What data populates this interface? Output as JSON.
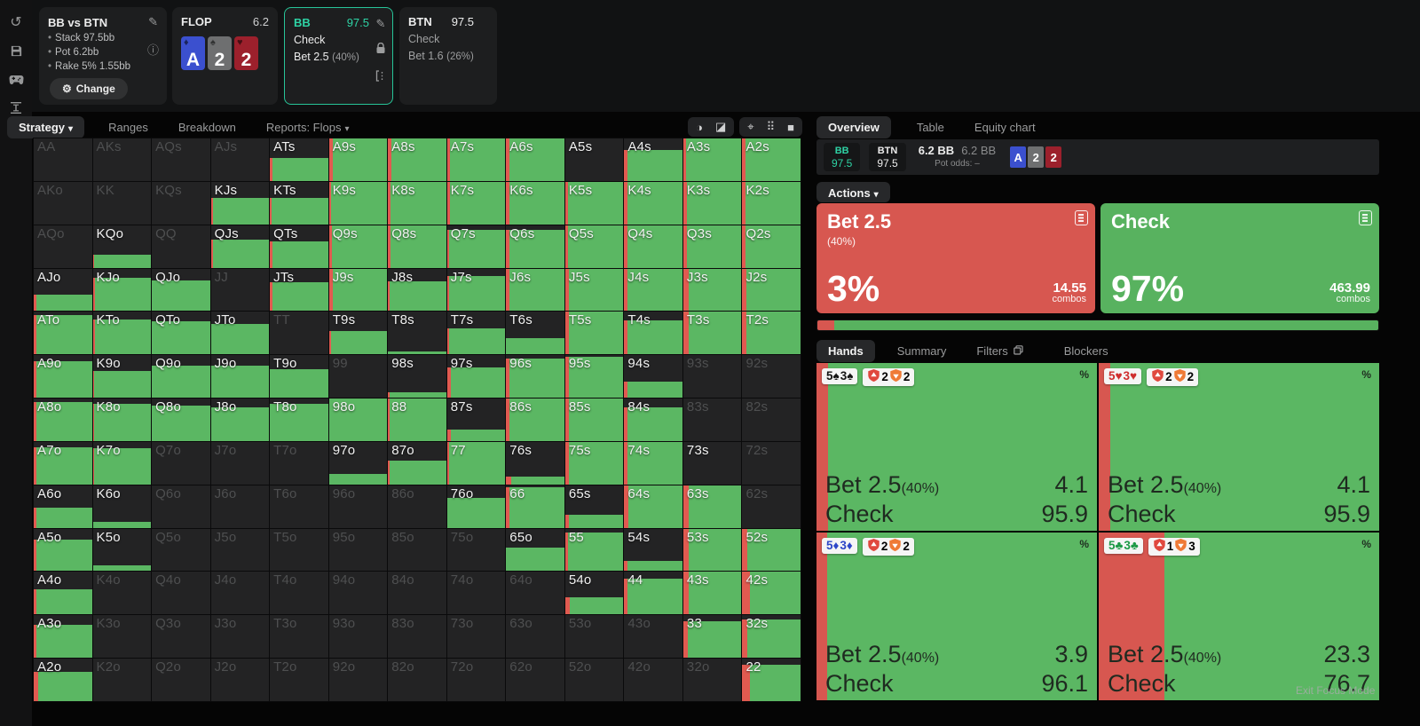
{
  "app": {
    "watermark": "Exit Focus Mode"
  },
  "header": {
    "sidebar_icons": [
      "undo-icon",
      "save-icon",
      "controller-icon",
      "stack-depth-icon"
    ],
    "config": {
      "title": "BB vs BTN",
      "rows": [
        "Stack 97.5bb",
        "Pot 6.2bb",
        "Rake 5% 1.55bb"
      ],
      "change_label": "Change"
    },
    "flop": {
      "label": "FLOP",
      "pot": "6.2",
      "cards": [
        {
          "rank": "A",
          "suit": "d"
        },
        {
          "rank": "2",
          "suit": "s"
        },
        {
          "rank": "2",
          "suit": "h"
        }
      ]
    },
    "nodes": [
      {
        "pos": "BB",
        "stack": "97.5",
        "action1": "Check",
        "freq1": "",
        "action2": "Bet 2.5",
        "freq2": "(40%)",
        "selected": true
      },
      {
        "pos": "BTN",
        "stack": "97.5",
        "action1": "Check",
        "freq1": "",
        "action2": "Bet 1.6",
        "freq2": "(26%)",
        "selected": false
      }
    ]
  },
  "matrix": {
    "tabs": [
      {
        "label": "Strategy"
      },
      {
        "label": "Ranges"
      },
      {
        "label": "Breakdown"
      },
      {
        "label": "Reports: Flops"
      }
    ],
    "cells": [
      [
        "AA",
        0,
        0,
        0
      ],
      [
        "AKs",
        0,
        0,
        0
      ],
      [
        "AQs",
        0,
        0,
        0
      ],
      [
        "AJs",
        0,
        0,
        0
      ],
      [
        "ATs",
        55,
        4,
        1
      ],
      [
        "A9s",
        100,
        6,
        1
      ],
      [
        "A8s",
        100,
        6,
        1
      ],
      [
        "A7s",
        100,
        5,
        1
      ],
      [
        "A6s",
        100,
        5,
        1
      ],
      [
        "A5s",
        0,
        0,
        1
      ],
      [
        "A4s",
        72,
        5,
        1
      ],
      [
        "A3s",
        100,
        5,
        1
      ],
      [
        "A2s",
        100,
        5,
        1
      ],
      [
        "AKo",
        0,
        0,
        0
      ],
      [
        "KK",
        0,
        0,
        0
      ],
      [
        "KQs",
        0,
        0,
        0
      ],
      [
        "KJs",
        62,
        4,
        1
      ],
      [
        "KTs",
        62,
        3,
        1
      ],
      [
        "K9s",
        100,
        4,
        1
      ],
      [
        "K8s",
        100,
        5,
        1
      ],
      [
        "K7s",
        100,
        5,
        1
      ],
      [
        "K6s",
        100,
        5,
        1
      ],
      [
        "K5s",
        100,
        5,
        1
      ],
      [
        "K4s",
        100,
        6,
        1
      ],
      [
        "K3s",
        100,
        6,
        1
      ],
      [
        "K2s",
        100,
        5,
        1
      ],
      [
        "AQo",
        0,
        0,
        0
      ],
      [
        "KQo",
        30,
        2,
        1
      ],
      [
        "QQ",
        0,
        0,
        0
      ],
      [
        "QJs",
        66,
        4,
        1
      ],
      [
        "QTs",
        62,
        4,
        1
      ],
      [
        "Q9s",
        100,
        5,
        1
      ],
      [
        "Q8s",
        100,
        5,
        1
      ],
      [
        "Q7s",
        88,
        4,
        1
      ],
      [
        "Q6s",
        88,
        5,
        1
      ],
      [
        "Q5s",
        100,
        5,
        1
      ],
      [
        "Q4s",
        100,
        6,
        1
      ],
      [
        "Q3s",
        100,
        6,
        1
      ],
      [
        "Q2s",
        100,
        5,
        1
      ],
      [
        "AJo",
        38,
        5,
        1
      ],
      [
        "KJo",
        78,
        4,
        1
      ],
      [
        "QJo",
        72,
        0,
        1
      ],
      [
        "JJ",
        0,
        0,
        0
      ],
      [
        "JTs",
        68,
        5,
        1
      ],
      [
        "J9s",
        100,
        6,
        1
      ],
      [
        "J8s",
        70,
        3,
        1
      ],
      [
        "J7s",
        82,
        4,
        1
      ],
      [
        "J6s",
        100,
        5,
        1
      ],
      [
        "J5s",
        100,
        6,
        1
      ],
      [
        "J4s",
        100,
        6,
        1
      ],
      [
        "J3s",
        100,
        9,
        1
      ],
      [
        "J2s",
        100,
        7,
        1
      ],
      [
        "ATo",
        93,
        5,
        1
      ],
      [
        "KTo",
        82,
        4,
        1
      ],
      [
        "QTo",
        78,
        0,
        1
      ],
      [
        "JTo",
        72,
        0,
        1
      ],
      [
        "TT",
        0,
        0,
        0
      ],
      [
        "T9s",
        55,
        4,
        1
      ],
      [
        "T8s",
        6,
        0,
        1
      ],
      [
        "T7s",
        62,
        3,
        1
      ],
      [
        "T6s",
        38,
        0,
        1
      ],
      [
        "T5s",
        100,
        6,
        1
      ],
      [
        "T4s",
        80,
        6,
        1
      ],
      [
        "T3s",
        100,
        10,
        1
      ],
      [
        "T2s",
        100,
        7,
        1
      ],
      [
        "A9o",
        85,
        5,
        1
      ],
      [
        "K9o",
        63,
        3,
        1
      ],
      [
        "Q9o",
        75,
        0,
        1
      ],
      [
        "J9o",
        75,
        0,
        1
      ],
      [
        "T9o",
        68,
        0,
        1
      ],
      [
        "99",
        0,
        0,
        0
      ],
      [
        "98s",
        12,
        2,
        1
      ],
      [
        "97s",
        72,
        6,
        1
      ],
      [
        "96s",
        93,
        5,
        1
      ],
      [
        "95s",
        97,
        6,
        1
      ],
      [
        "94s",
        38,
        5,
        1
      ],
      [
        "93s",
        0,
        0,
        0
      ],
      [
        "92s",
        0,
        0,
        0
      ],
      [
        "A8o",
        92,
        4,
        1
      ],
      [
        "K8o",
        88,
        3,
        1
      ],
      [
        "Q8o",
        83,
        0,
        1
      ],
      [
        "J8o",
        80,
        0,
        1
      ],
      [
        "T8o",
        88,
        0,
        1
      ],
      [
        "98o",
        100,
        0,
        1
      ],
      [
        "88",
        100,
        3,
        1
      ],
      [
        "87s",
        28,
        6,
        1
      ],
      [
        "86s",
        100,
        6,
        1
      ],
      [
        "85s",
        100,
        6,
        1
      ],
      [
        "84s",
        80,
        6,
        1
      ],
      [
        "83s",
        0,
        0,
        0
      ],
      [
        "82s",
        0,
        0,
        0
      ],
      [
        "A7o",
        88,
        4,
        1
      ],
      [
        "K7o",
        85,
        3,
        1
      ],
      [
        "Q7o",
        0,
        0,
        0
      ],
      [
        "J7o",
        0,
        0,
        0
      ],
      [
        "T7o",
        0,
        0,
        0
      ],
      [
        "97o",
        25,
        0,
        1
      ],
      [
        "87o",
        55,
        2,
        1
      ],
      [
        "77",
        100,
        4,
        1
      ],
      [
        "76s",
        18,
        8,
        1
      ],
      [
        "75s",
        100,
        7,
        1
      ],
      [
        "74s",
        100,
        6,
        1
      ],
      [
        "73s",
        0,
        0,
        1
      ],
      [
        "72s",
        0,
        0,
        0
      ],
      [
        "A6o",
        48,
        5,
        1
      ],
      [
        "K6o",
        13,
        0,
        1
      ],
      [
        "Q6o",
        0,
        0,
        0
      ],
      [
        "J6o",
        0,
        0,
        0
      ],
      [
        "T6o",
        0,
        0,
        0
      ],
      [
        "96o",
        0,
        0,
        0
      ],
      [
        "86o",
        0,
        0,
        0
      ],
      [
        "76o",
        70,
        0,
        1
      ],
      [
        "66",
        95,
        5,
        1
      ],
      [
        "65s",
        30,
        6,
        1
      ],
      [
        "64s",
        100,
        7,
        1
      ],
      [
        "63s",
        100,
        9,
        1
      ],
      [
        "62s",
        0,
        0,
        0
      ],
      [
        "A5o",
        75,
        4,
        1
      ],
      [
        "K5o",
        13,
        0,
        1
      ],
      [
        "Q5o",
        0,
        0,
        0
      ],
      [
        "J5o",
        0,
        0,
        0
      ],
      [
        "T5o",
        0,
        0,
        0
      ],
      [
        "95o",
        0,
        0,
        0
      ],
      [
        "85o",
        0,
        0,
        0
      ],
      [
        "75o",
        0,
        0,
        0
      ],
      [
        "65o",
        55,
        0,
        1
      ],
      [
        "55",
        90,
        5,
        1
      ],
      [
        "54s",
        25,
        6,
        1
      ],
      [
        "53s",
        100,
        10,
        1
      ],
      [
        "52s",
        100,
        9,
        1
      ],
      [
        "A4o",
        60,
        5,
        1
      ],
      [
        "K4o",
        0,
        0,
        0
      ],
      [
        "Q4o",
        0,
        0,
        0
      ],
      [
        "J4o",
        0,
        0,
        0
      ],
      [
        "T4o",
        0,
        0,
        0
      ],
      [
        "94o",
        0,
        0,
        0
      ],
      [
        "84o",
        0,
        0,
        0
      ],
      [
        "74o",
        0,
        0,
        0
      ],
      [
        "64o",
        0,
        0,
        0
      ],
      [
        "54o",
        40,
        8,
        1
      ],
      [
        "44",
        85,
        6,
        1
      ],
      [
        "43s",
        100,
        10,
        1
      ],
      [
        "42s",
        100,
        13,
        1
      ],
      [
        "A3o",
        78,
        5,
        1
      ],
      [
        "K3o",
        0,
        0,
        0
      ],
      [
        "Q3o",
        0,
        0,
        0
      ],
      [
        "J3o",
        0,
        0,
        0
      ],
      [
        "T3o",
        0,
        0,
        0
      ],
      [
        "93o",
        0,
        0,
        0
      ],
      [
        "83o",
        0,
        0,
        0
      ],
      [
        "73o",
        0,
        0,
        0
      ],
      [
        "63o",
        0,
        0,
        0
      ],
      [
        "53o",
        0,
        0,
        0
      ],
      [
        "43o",
        0,
        0,
        0
      ],
      [
        "33",
        85,
        8,
        1
      ],
      [
        "32s",
        90,
        9,
        1
      ],
      [
        "A2o",
        68,
        7,
        1
      ],
      [
        "K2o",
        0,
        0,
        0
      ],
      [
        "Q2o",
        0,
        0,
        0
      ],
      [
        "J2o",
        0,
        0,
        0
      ],
      [
        "T2o",
        0,
        0,
        0
      ],
      [
        "92o",
        0,
        0,
        0
      ],
      [
        "82o",
        0,
        0,
        0
      ],
      [
        "72o",
        0,
        0,
        0
      ],
      [
        "62o",
        0,
        0,
        0
      ],
      [
        "52o",
        0,
        0,
        0
      ],
      [
        "42o",
        0,
        0,
        0
      ],
      [
        "32o",
        0,
        0,
        0
      ],
      [
        "22",
        85,
        13,
        1
      ]
    ]
  },
  "panel": {
    "tabs": [
      "Overview",
      "Table",
      "Equity chart"
    ],
    "info": {
      "hero_pos": "BB",
      "hero_stack": "97.5",
      "villain_pos": "BTN",
      "villain_stack": "97.5",
      "pot": "6.2 BB",
      "pot2": "6.2 BB",
      "pot_odds_label": "Pot odds:",
      "pot_odds_value": "–",
      "cards": [
        {
          "rank": "A",
          "suit": "d"
        },
        {
          "rank": "2",
          "suit": "s"
        },
        {
          "rank": "2",
          "suit": "h"
        }
      ]
    },
    "actions_tab": "Actions",
    "action_cards": [
      {
        "title": "Bet 2.5",
        "freq": "(40%)",
        "pct": "3%",
        "combos": "14.55",
        "combos_label": "combos"
      },
      {
        "title": "Check",
        "freq": "",
        "pct": "97%",
        "combos": "463.99",
        "combos_label": "combos"
      }
    ],
    "freq_bar": {
      "bet_pct": 3,
      "check_pct": 97
    },
    "hand_tabs": [
      "Hands",
      "Summary",
      "Filters",
      "Blockers"
    ],
    "hands": [
      {
        "cards": [
          {
            "rank": "5",
            "suit": "s"
          },
          {
            "rank": "3",
            "suit": "s"
          }
        ],
        "block_bet": "2",
        "block_check": "2",
        "pct_symbol": "%",
        "bet_width": 4.1,
        "rows": [
          {
            "name": "Bet 2.5",
            "freq": "(40%)",
            "value": "4.1"
          },
          {
            "name": "Check",
            "freq": "",
            "value": "95.9"
          }
        ]
      },
      {
        "cards": [
          {
            "rank": "5",
            "suit": "h"
          },
          {
            "rank": "3",
            "suit": "h"
          }
        ],
        "block_bet": "2",
        "block_check": "2",
        "pct_symbol": "%",
        "bet_width": 4.1,
        "rows": [
          {
            "name": "Bet 2.5",
            "freq": "(40%)",
            "value": "4.1"
          },
          {
            "name": "Check",
            "freq": "",
            "value": "95.9"
          }
        ]
      },
      {
        "cards": [
          {
            "rank": "5",
            "suit": "d"
          },
          {
            "rank": "3",
            "suit": "d"
          }
        ],
        "block_bet": "2",
        "block_check": "2",
        "pct_symbol": "%",
        "bet_width": 3.9,
        "rows": [
          {
            "name": "Bet 2.5",
            "freq": "(40%)",
            "value": "3.9"
          },
          {
            "name": "Check",
            "freq": "",
            "value": "96.1"
          }
        ]
      },
      {
        "cards": [
          {
            "rank": "5",
            "suit": "c"
          },
          {
            "rank": "3",
            "suit": "c"
          }
        ],
        "block_bet": "1",
        "block_check": "3",
        "pct_symbol": "%",
        "bet_width": 23.3,
        "rows": [
          {
            "name": "Bet 2.5",
            "freq": "(40%)",
            "value": "23.3"
          },
          {
            "name": "Check",
            "freq": "",
            "value": "76.7"
          }
        ]
      }
    ]
  },
  "colors": {
    "accent_teal": "#2ed3a5",
    "matrix_green": "#5bb763",
    "matrix_red": "#e15a50",
    "card_red": "#d75750",
    "card_green": "#58b25f",
    "suit_d": "#2d46c8",
    "suit_h": "#cf2e2e",
    "suit_s": "#141414",
    "suit_c": "#1d9a46"
  }
}
